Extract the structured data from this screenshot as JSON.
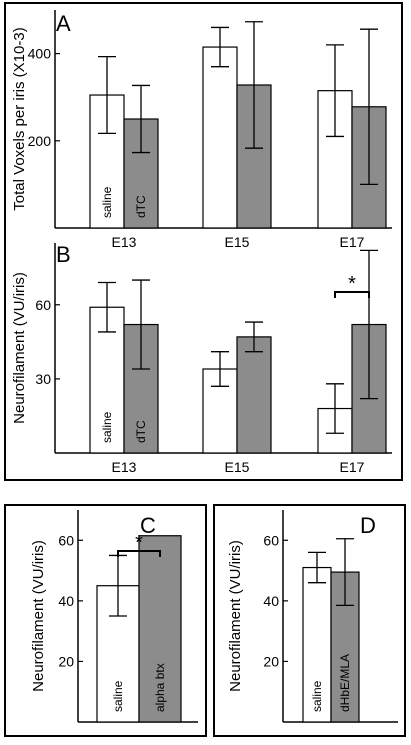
{
  "chart_data": [
    {
      "panel": "A",
      "type": "bar",
      "ylabel": "Total Voxels per iris (X10-3)",
      "xlabel": "",
      "categories": [
        "E13",
        "E15",
        "E17"
      ],
      "series": [
        {
          "name": "saline",
          "values": [
            305,
            415,
            315
          ],
          "errors": [
            88,
            45,
            105
          ],
          "color": "#ffffff"
        },
        {
          "name": "dTC",
          "values": [
            250,
            328,
            278
          ],
          "errors": [
            77,
            145,
            178
          ],
          "color": "#8c8c8c"
        }
      ],
      "bar_labels": [
        "saline",
        "dTC"
      ],
      "yticks": [
        200,
        400
      ],
      "ylim": [
        0,
        500
      ],
      "significance": []
    },
    {
      "panel": "B",
      "type": "bar",
      "ylabel": "Neurofilament (VU/iris)",
      "xlabel": "",
      "categories": [
        "E13",
        "E15",
        "E17"
      ],
      "series": [
        {
          "name": "saline",
          "values": [
            59,
            34,
            18
          ],
          "errors": [
            10,
            7,
            10
          ],
          "color": "#ffffff"
        },
        {
          "name": "dTC",
          "values": [
            52,
            47,
            52
          ],
          "errors": [
            18,
            6,
            30
          ],
          "color": "#8c8c8c"
        }
      ],
      "bar_labels": [
        "saline",
        "dTC"
      ],
      "yticks": [
        30,
        60
      ],
      "ylim": [
        0,
        85
      ],
      "significance": [
        {
          "category": "E17",
          "mark": "*"
        }
      ]
    },
    {
      "panel": "C",
      "type": "bar",
      "ylabel": "Neurofilament (VU/iris)",
      "xlabel": "",
      "categories": [
        ""
      ],
      "series": [
        {
          "name": "saline",
          "values": [
            45
          ],
          "errors": [
            10
          ],
          "color": "#ffffff"
        },
        {
          "name": "alpha btx",
          "values": [
            61.5
          ],
          "errors": [
            0
          ],
          "color": "#8c8c8c"
        }
      ],
      "bar_labels": [
        "saline",
        "alpha btx"
      ],
      "yticks": [
        20,
        40,
        60
      ],
      "ylim": [
        0,
        70
      ],
      "significance": [
        {
          "category": "",
          "mark": "*"
        }
      ]
    },
    {
      "panel": "D",
      "type": "bar",
      "ylabel": "Neurofilament (VU/iris)",
      "xlabel": "",
      "categories": [
        ""
      ],
      "series": [
        {
          "name": "saline",
          "values": [
            51
          ],
          "errors": [
            5
          ],
          "color": "#ffffff"
        },
        {
          "name": "dHbE/MLA",
          "values": [
            49.5
          ],
          "errors": [
            11
          ],
          "color": "#8c8c8c"
        }
      ],
      "bar_labels": [
        "saline",
        "dHbE/MLA"
      ],
      "yticks": [
        20,
        40,
        60
      ],
      "ylim": [
        0,
        70
      ],
      "significance": []
    }
  ]
}
